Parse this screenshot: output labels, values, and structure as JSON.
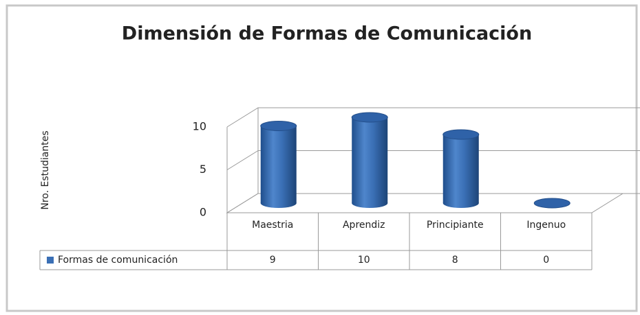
{
  "chart_data": {
    "type": "bar",
    "title": "Dimensión de Formas de Comunicación",
    "y_label": "Nro. Estudiantes",
    "categories": [
      "Maestria",
      "Aprendiz",
      "Principiante",
      "Ingenuo"
    ],
    "series": [
      {
        "name": "Formas de comunicación",
        "color": "#3a6fb5",
        "values": [
          9,
          10,
          8,
          0
        ]
      }
    ],
    "ylim": [
      0,
      10
    ],
    "yticks": [
      0,
      5,
      10
    ],
    "grid": true,
    "legend": "bottom-left"
  }
}
